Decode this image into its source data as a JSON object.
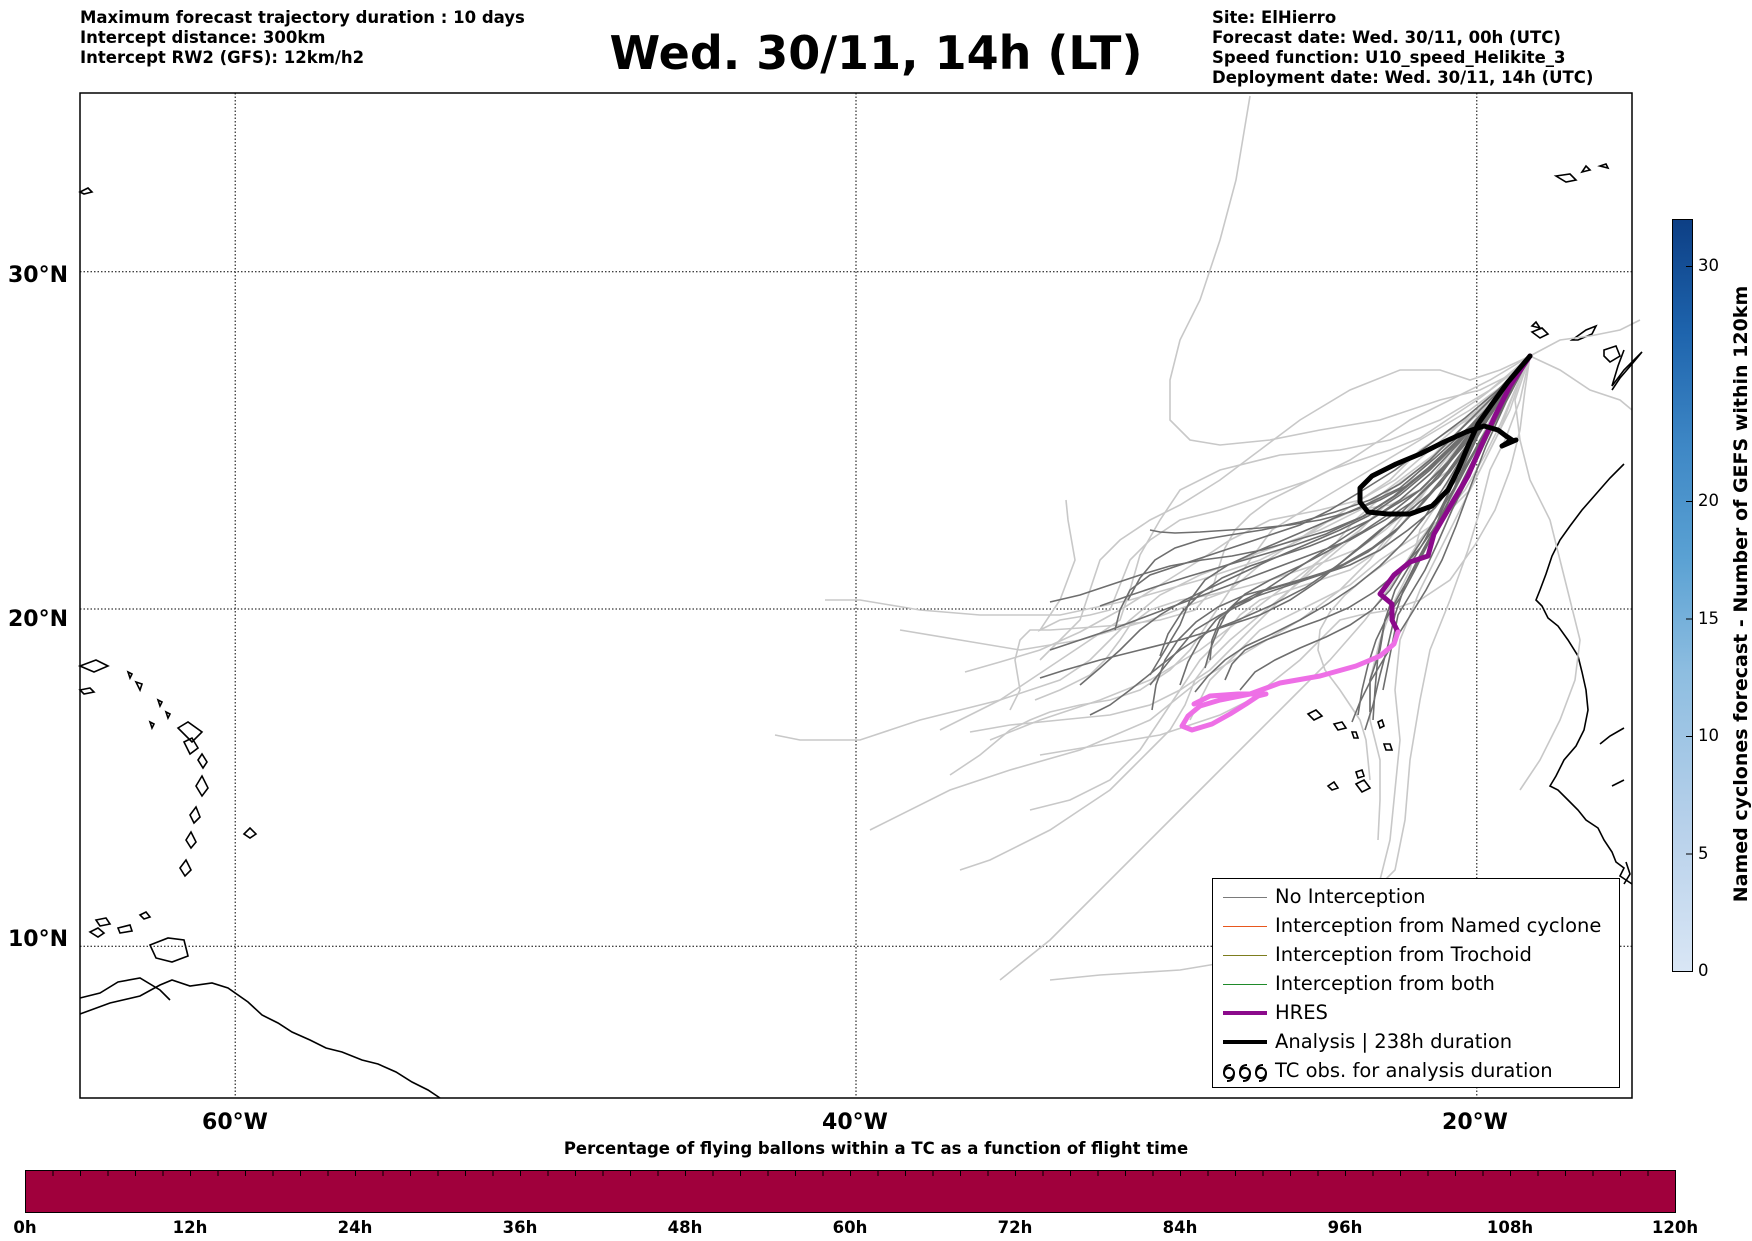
{
  "header": {
    "left_lines": [
      "Maximum forecast trajectory duration : 10 days",
      "Intercept distance: 300km",
      "Intercept RW2 (GFS):  12km/h2"
    ],
    "title": "Wed. 30/11, 14h (LT)",
    "right_lines": [
      "Site: ElHierro",
      "Forecast date: Wed. 30/11, 00h (UTC)",
      "Speed function: U10_speed_Helikite_3",
      "Deployment date: Wed. 30/11, 14h (UTC)"
    ]
  },
  "map": {
    "lat_labels": [
      "30°N",
      "20°N",
      "10°N"
    ],
    "lon_labels": [
      "60°W",
      "40°W",
      "20°W"
    ],
    "lat_values": [
      30,
      20,
      10
    ],
    "lon_values": [
      -60,
      -40,
      -20
    ],
    "extent": {
      "lon_min": -65,
      "lon_max": -15,
      "lat_min": 5.5,
      "lat_max": 35.3
    }
  },
  "legend": {
    "items": [
      {
        "label": "No Interception",
        "color": "#7a7a7a",
        "kind": "thin"
      },
      {
        "label": "Interception from Named cyclone",
        "color": "#e8571e",
        "kind": "thin"
      },
      {
        "label": "Interception from Trochoid",
        "color": "#7d7d1e",
        "kind": "thin"
      },
      {
        "label": "Interception from both",
        "color": "#1f8a2a",
        "kind": "thin"
      },
      {
        "label": "HRES",
        "color": "#8b0a8b",
        "kind": "thick"
      },
      {
        "label": "Analysis | 238h duration",
        "color": "#000000",
        "kind": "thick"
      },
      {
        "label": "TC obs. for analysis duration",
        "color": "#000000",
        "kind": "symbol"
      }
    ]
  },
  "colorbar": {
    "label": "Named cyclones forecast - Number of GEFS within 120km",
    "ticks": [
      "0",
      "5",
      "10",
      "15",
      "20",
      "30"
    ],
    "tick_values": [
      0,
      5,
      10,
      15,
      20,
      30
    ],
    "max": 32,
    "colors": [
      "#d9e6f5",
      "#b6d0ea",
      "#8dbde0",
      "#5aa1d3",
      "#3e87c5",
      "#1e64ad",
      "#0d3f85"
    ]
  },
  "flight_bar": {
    "title": "Percentage of flying ballons within a TC as a function of flight time",
    "ticks": [
      "0h",
      "12h",
      "24h",
      "36h",
      "48h",
      "60h",
      "72h",
      "84h",
      "96h",
      "108h",
      "120h"
    ],
    "color": "#a0003c",
    "value_percent": 0
  },
  "colors": {
    "ensemble_light": "#c8c8c8",
    "ensemble_dark": "#6e6e6e",
    "hres_dark": "#8b0a8b",
    "hres_light": "#ee6fe6",
    "analysis": "#000000"
  }
}
